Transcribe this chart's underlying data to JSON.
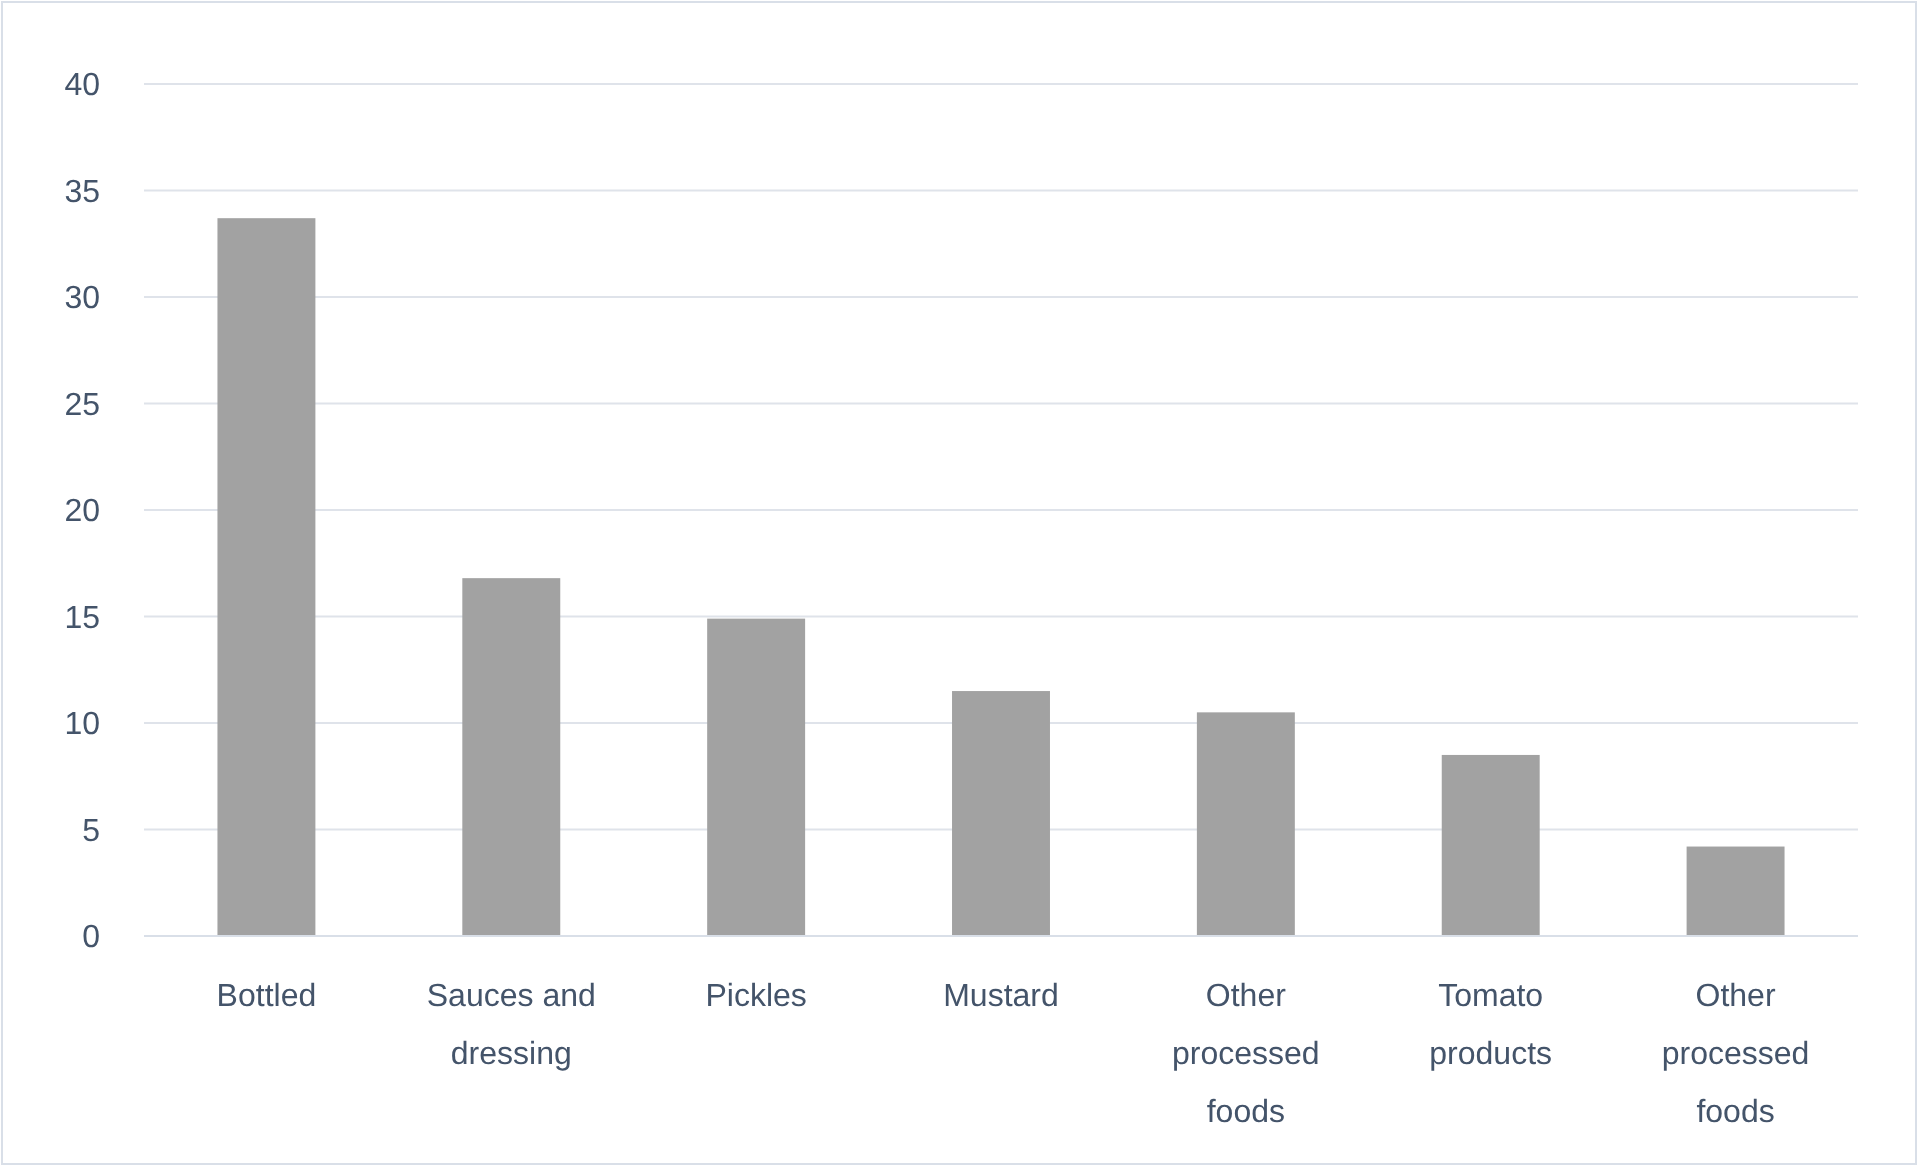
{
  "chart_data": {
    "type": "bar",
    "categories": [
      "Bottled",
      "Sauces and dressing",
      "Pickles",
      "Mustard",
      "Other processed foods",
      "Tomato products",
      "Other processed foods"
    ],
    "values": [
      33.7,
      16.8,
      14.9,
      11.5,
      10.5,
      8.5,
      4.2
    ],
    "color": "#a2a2a2",
    "ylim": [
      0,
      40
    ],
    "yticks": [
      0,
      5,
      10,
      15,
      20,
      25,
      30,
      35,
      40
    ],
    "grid": "y"
  }
}
